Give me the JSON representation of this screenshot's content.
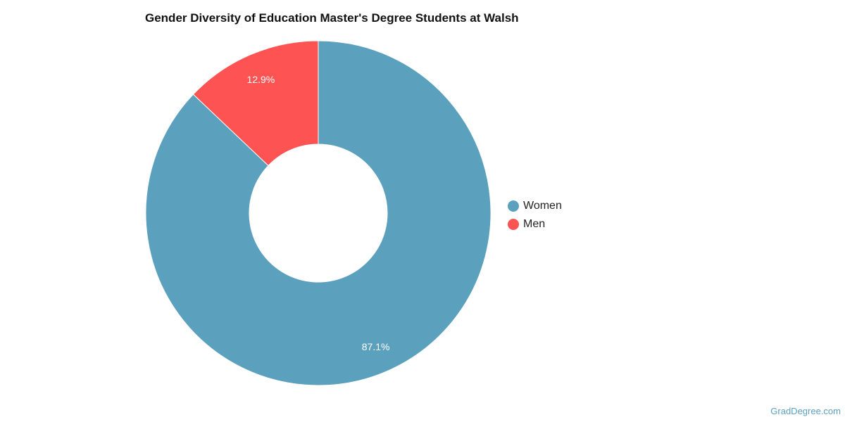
{
  "chart_data": {
    "type": "pie",
    "title": "Gender Diversity of Education Master's Degree Students at Walsh",
    "donut": true,
    "slices": [
      {
        "label": "Women",
        "value": 87.1,
        "display": "87.1%",
        "color": "#5ba0bd"
      },
      {
        "label": "Men",
        "value": 12.9,
        "display": "12.9%",
        "color": "#fe5353"
      }
    ],
    "legend_position": "right"
  },
  "source": "GradDegree.com"
}
